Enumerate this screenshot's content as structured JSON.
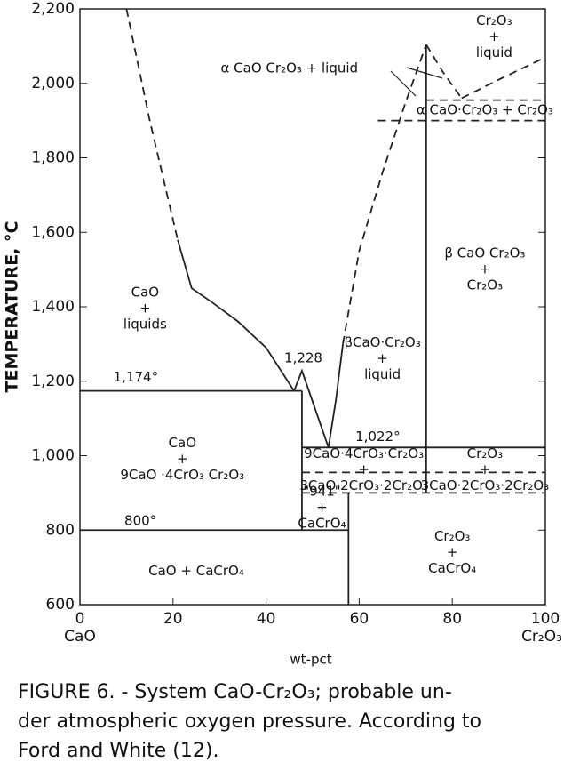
{
  "chart_data": {
    "type": "phase-diagram",
    "xlabel": "wt-pct",
    "ylabel": "TEMPERATURE, °C",
    "x_end_labels": [
      "CaO",
      "Cr₂O₃"
    ],
    "xlim": [
      0,
      100
    ],
    "xticks": [
      0,
      20,
      40,
      60,
      80,
      100
    ],
    "ylim": [
      600,
      2200
    ],
    "yticks": [
      600,
      800,
      {
        "value": 1000,
        "label": "1,000"
      },
      {
        "value": 1200,
        "label": "1,200"
      },
      {
        "value": 1400,
        "label": "1,400"
      },
      {
        "value": 1600,
        "label": "1,600"
      },
      {
        "value": 1800,
        "label": "1,800"
      },
      {
        "value": 2000,
        "label": "2,000"
      },
      {
        "value": 2200,
        "label": "2,200"
      }
    ],
    "color": "#222",
    "boundaries": [
      {
        "style": "dashed",
        "x": [
          10,
          15,
          21
        ],
        "y": [
          2200,
          1900,
          1580
        ]
      },
      {
        "style": "solid",
        "x": [
          21,
          24,
          28.6,
          34,
          40,
          46
        ],
        "y": [
          1580,
          1450,
          1410,
          1360,
          1290,
          1174
        ]
      },
      {
        "style": "solid",
        "x": [
          46,
          47.7,
          53.4
        ],
        "y": [
          1174,
          1228,
          1022
        ]
      },
      {
        "style": "solid",
        "x": [
          53.4,
          55,
          56.5
        ],
        "y": [
          1022,
          1150,
          1300
        ]
      },
      {
        "style": "dashed",
        "x": [
          56.5,
          60,
          65,
          70,
          74.4
        ],
        "y": [
          1300,
          1550,
          1760,
          1950,
          2104
        ]
      },
      {
        "style": "dashed",
        "x": [
          74.4,
          78,
          82
        ],
        "y": [
          2104,
          2030,
          1960
        ]
      },
      {
        "style": "dashed",
        "x": [
          82,
          90,
          100
        ],
        "y": [
          1960,
          2010,
          2070
        ]
      },
      {
        "style": "solid",
        "x": [
          74.4,
          74.4
        ],
        "y": [
          2104,
          900
        ]
      },
      {
        "style": "solid",
        "x": [
          0,
          47.7
        ],
        "y": [
          1174,
          1174
        ]
      },
      {
        "style": "solid",
        "x": [
          47.7,
          47.7
        ],
        "y": [
          1174,
          800
        ]
      },
      {
        "style": "solid",
        "x": [
          0,
          57.7
        ],
        "y": [
          800,
          800
        ]
      },
      {
        "style": "solid",
        "x": [
          47.7,
          100
        ],
        "y": [
          1022,
          1022
        ]
      },
      {
        "style": "dashed",
        "x": [
          47.7,
          100
        ],
        "y": [
          955,
          955
        ]
      },
      {
        "style": "dashed",
        "x": [
          47.7,
          100
        ],
        "y": [
          900,
          900
        ]
      },
      {
        "style": "solid",
        "x": [
          57.7,
          57.7
        ],
        "y": [
          900,
          600
        ]
      },
      {
        "style": "dashed",
        "x": [
          64,
          100
        ],
        "y": [
          1900,
          1900
        ]
      },
      {
        "style": "dashed",
        "x": [
          74.4,
          100
        ],
        "y": [
          1955,
          1955
        ]
      }
    ],
    "annotations": [
      {
        "lines": [
          "Cr₂O₃",
          "+",
          "liquid"
        ],
        "x": 89,
        "y": 2125
      },
      {
        "lines": [
          "α CaO Cr₂O₃ + liquid"
        ],
        "x": 45,
        "y": 2040
      },
      {
        "lines": [
          "α CaO·Cr₂O₃ + Cr₂O₃"
        ],
        "x": 87,
        "y": 1928
      },
      {
        "lines": [
          "β CaO Cr₂O₃",
          "+",
          "Cr₂O₃"
        ],
        "x": 87,
        "y": 1500
      },
      {
        "lines": [
          "CaO",
          "+",
          "liquids"
        ],
        "x": 14,
        "y": 1395
      },
      {
        "lines": [
          "βCaO·Cr₂O₃",
          "+",
          "liquid"
        ],
        "x": 65,
        "y": 1260
      },
      {
        "lines": [
          "1,174°"
        ],
        "x": 12,
        "y": 1210
      },
      {
        "lines": [
          "1,228"
        ],
        "x": 48,
        "y": 1262
      },
      {
        "lines": [
          "1,022°"
        ],
        "x": 64,
        "y": 1050
      },
      {
        "lines": [
          "800°"
        ],
        "x": 13,
        "y": 825
      },
      {
        "lines": [
          "CaO",
          "+",
          "9CaO ·4CrO₃  Cr₂O₃"
        ],
        "x": 22,
        "y": 990
      },
      {
        "lines": [
          "9CaO·4CrO₃·Cr₂O₃",
          "+",
          "3CaO·2CrO₃·2Cr₂O₃"
        ],
        "x": 61,
        "y": 962
      },
      {
        "lines": [
          "Cr₂O₃",
          "+",
          "3CaO·2CrO₃·2Cr₂O₃"
        ],
        "x": 87,
        "y": 962
      },
      {
        "lines": [
          "\"941\"",
          "+",
          "CaCrO₄"
        ],
        "x": 52,
        "y": 860
      },
      {
        "lines": [
          "CaO + CaCrO₄"
        ],
        "x": 25,
        "y": 690
      },
      {
        "lines": [
          "Cr₂O₃",
          "+",
          "CaCrO₄"
        ],
        "x": 80,
        "y": 740
      }
    ],
    "caption": [
      "FIGURE 6. - System CaO-Cr₂O₃; probable un-",
      "der atmospheric oxygen pressure. According to",
      "Ford and White (12)."
    ]
  }
}
